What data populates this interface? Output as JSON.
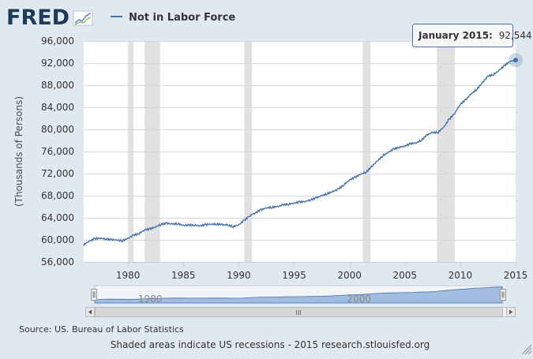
{
  "logo": {
    "text": "FRED"
  },
  "colors": {
    "page_bg": "#e1e9f0",
    "plot_bg": "#ffffff",
    "series": "#4572a7",
    "recession": "#e1e1e1",
    "tooltip_border": "#4572a7",
    "navigator_fill": "#a3bde0"
  },
  "footer": {
    "source": "Source: US. Bureau of Labor Statistics",
    "note": "Shaded areas indicate US recessions - 2015 research.stlouisfed.org"
  },
  "tooltip": {
    "date": "January 2015:",
    "value": "92,544"
  },
  "navigator": {
    "labels": [
      {
        "year": 1980,
        "text": "1980"
      },
      {
        "year": 2000,
        "text": "2000"
      }
    ],
    "scroll_grip": "III"
  },
  "chart_data": {
    "type": "line",
    "title": "",
    "ylabel": "(Thousands of Persons)",
    "xlabel": "",
    "xlim": [
      1976.0,
      2015.0
    ],
    "ylim": [
      56000,
      96000
    ],
    "yticks": [
      56000,
      60000,
      64000,
      68000,
      72000,
      76000,
      80000,
      84000,
      88000,
      92000,
      96000
    ],
    "ytick_labels": [
      "56,000",
      "60,000",
      "64,000",
      "68,000",
      "72,000",
      "76,000",
      "80,000",
      "84,000",
      "88,000",
      "92,000",
      "96,000"
    ],
    "xticks": [
      1980,
      1985,
      1990,
      1995,
      2000,
      2005,
      2010,
      2015
    ],
    "xtick_labels": [
      "1980",
      "1985",
      "1990",
      "1995",
      "2000",
      "2005",
      "2010",
      "2015"
    ],
    "grid": "horizontal",
    "legend": "top-left",
    "recessions": [
      [
        1980.0,
        1980.5
      ],
      [
        1981.5,
        1982.9
      ],
      [
        1990.5,
        1991.2
      ],
      [
        2001.2,
        2001.9
      ],
      [
        2007.9,
        2009.5
      ]
    ],
    "series": [
      {
        "name": "Not in Labor Force",
        "x": [
          1976.0,
          1976.5,
          1977.0,
          1977.5,
          1978.0,
          1978.5,
          1979.0,
          1979.5,
          1980.0,
          1980.5,
          1981.0,
          1981.5,
          1982.0,
          1982.5,
          1983.0,
          1983.5,
          1984.0,
          1984.5,
          1985.0,
          1985.5,
          1986.0,
          1986.5,
          1987.0,
          1987.5,
          1988.0,
          1988.5,
          1989.0,
          1989.5,
          1990.0,
          1990.5,
          1991.0,
          1991.5,
          1992.0,
          1992.5,
          1993.0,
          1993.5,
          1994.0,
          1994.5,
          1995.0,
          1995.5,
          1996.0,
          1996.5,
          1997.0,
          1997.5,
          1998.0,
          1998.5,
          1999.0,
          1999.5,
          2000.0,
          2000.5,
          2001.0,
          2001.5,
          2002.0,
          2002.5,
          2003.0,
          2003.5,
          2004.0,
          2004.5,
          2005.0,
          2005.5,
          2006.0,
          2006.5,
          2007.0,
          2007.5,
          2008.0,
          2008.5,
          2009.0,
          2009.5,
          2010.0,
          2010.5,
          2011.0,
          2011.5,
          2012.0,
          2012.5,
          2013.0,
          2013.5,
          2014.0,
          2014.5,
          2015.0
        ],
        "y": [
          59100,
          59700,
          60100,
          60200,
          60000,
          59900,
          59800,
          59700,
          60100,
          60700,
          61000,
          61700,
          61900,
          62300,
          62800,
          63000,
          62900,
          63000,
          62700,
          62800,
          62800,
          62700,
          62900,
          63000,
          63000,
          62900,
          62800,
          62500,
          62800,
          63600,
          64400,
          64900,
          65400,
          65700,
          65800,
          65900,
          66200,
          66300,
          66500,
          66700,
          66800,
          67100,
          67500,
          67900,
          68300,
          68700,
          69200,
          70000,
          70900,
          71400,
          72000,
          72400,
          73400,
          74400,
          75400,
          76000,
          76600,
          76900,
          77100,
          77500,
          77600,
          78100,
          79000,
          79400,
          79400,
          80300,
          81700,
          82800,
          84400,
          85200,
          86300,
          87100,
          88300,
          89500,
          89800,
          90600,
          91500,
          92300,
          92544
        ]
      }
    ]
  }
}
